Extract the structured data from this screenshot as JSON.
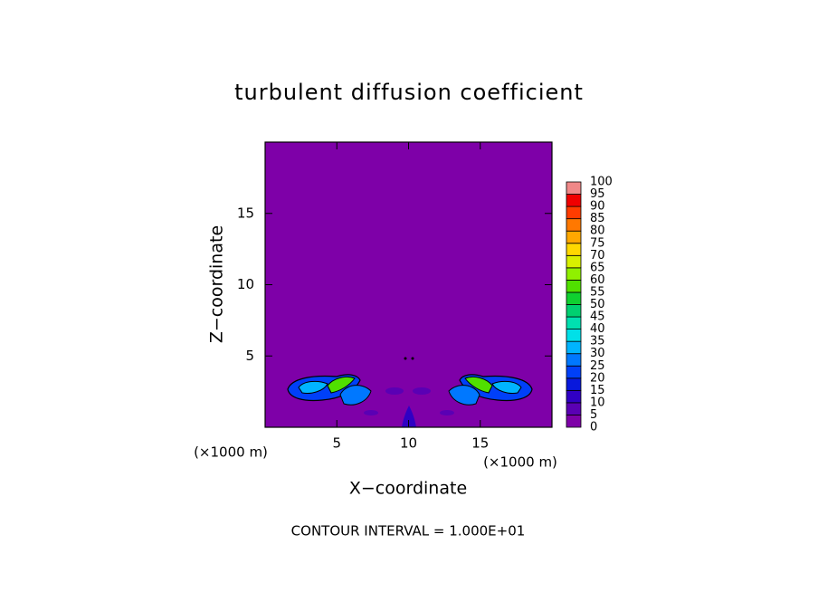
{
  "chart_data": {
    "type": "contour",
    "title": "turbulent diffusion coefficient",
    "x_label": "X−coordinate",
    "y_label": "Z−coordinate",
    "x_unit": "(×1000 m)",
    "y_unit": "(×1000 m)",
    "note": "CONTOUR INTERVAL = 1.000E+01",
    "xlim": [
      0,
      20
    ],
    "ylim": [
      0,
      20
    ],
    "xticks": [
      5,
      10,
      15
    ],
    "yticks": [
      5,
      10,
      15
    ],
    "background_color": "#7e00a8",
    "clim": [
      0,
      100
    ],
    "cticks": [
      0,
      5,
      10,
      15,
      20,
      25,
      30,
      35,
      40,
      45,
      50,
      55,
      60,
      65,
      70,
      75,
      80,
      85,
      90,
      95,
      100
    ],
    "colors": [
      "#7e00a8",
      "#5a00b4",
      "#3000c4",
      "#0818dc",
      "#0040f8",
      "#0078ff",
      "#00b4ff",
      "#00e0e8",
      "#00e0b0",
      "#00d070",
      "#10d030",
      "#50e000",
      "#90f000",
      "#d8f000",
      "#ffd800",
      "#ffa800",
      "#ff7800",
      "#ff3c00",
      "#f00000",
      "#f08888"
    ]
  }
}
